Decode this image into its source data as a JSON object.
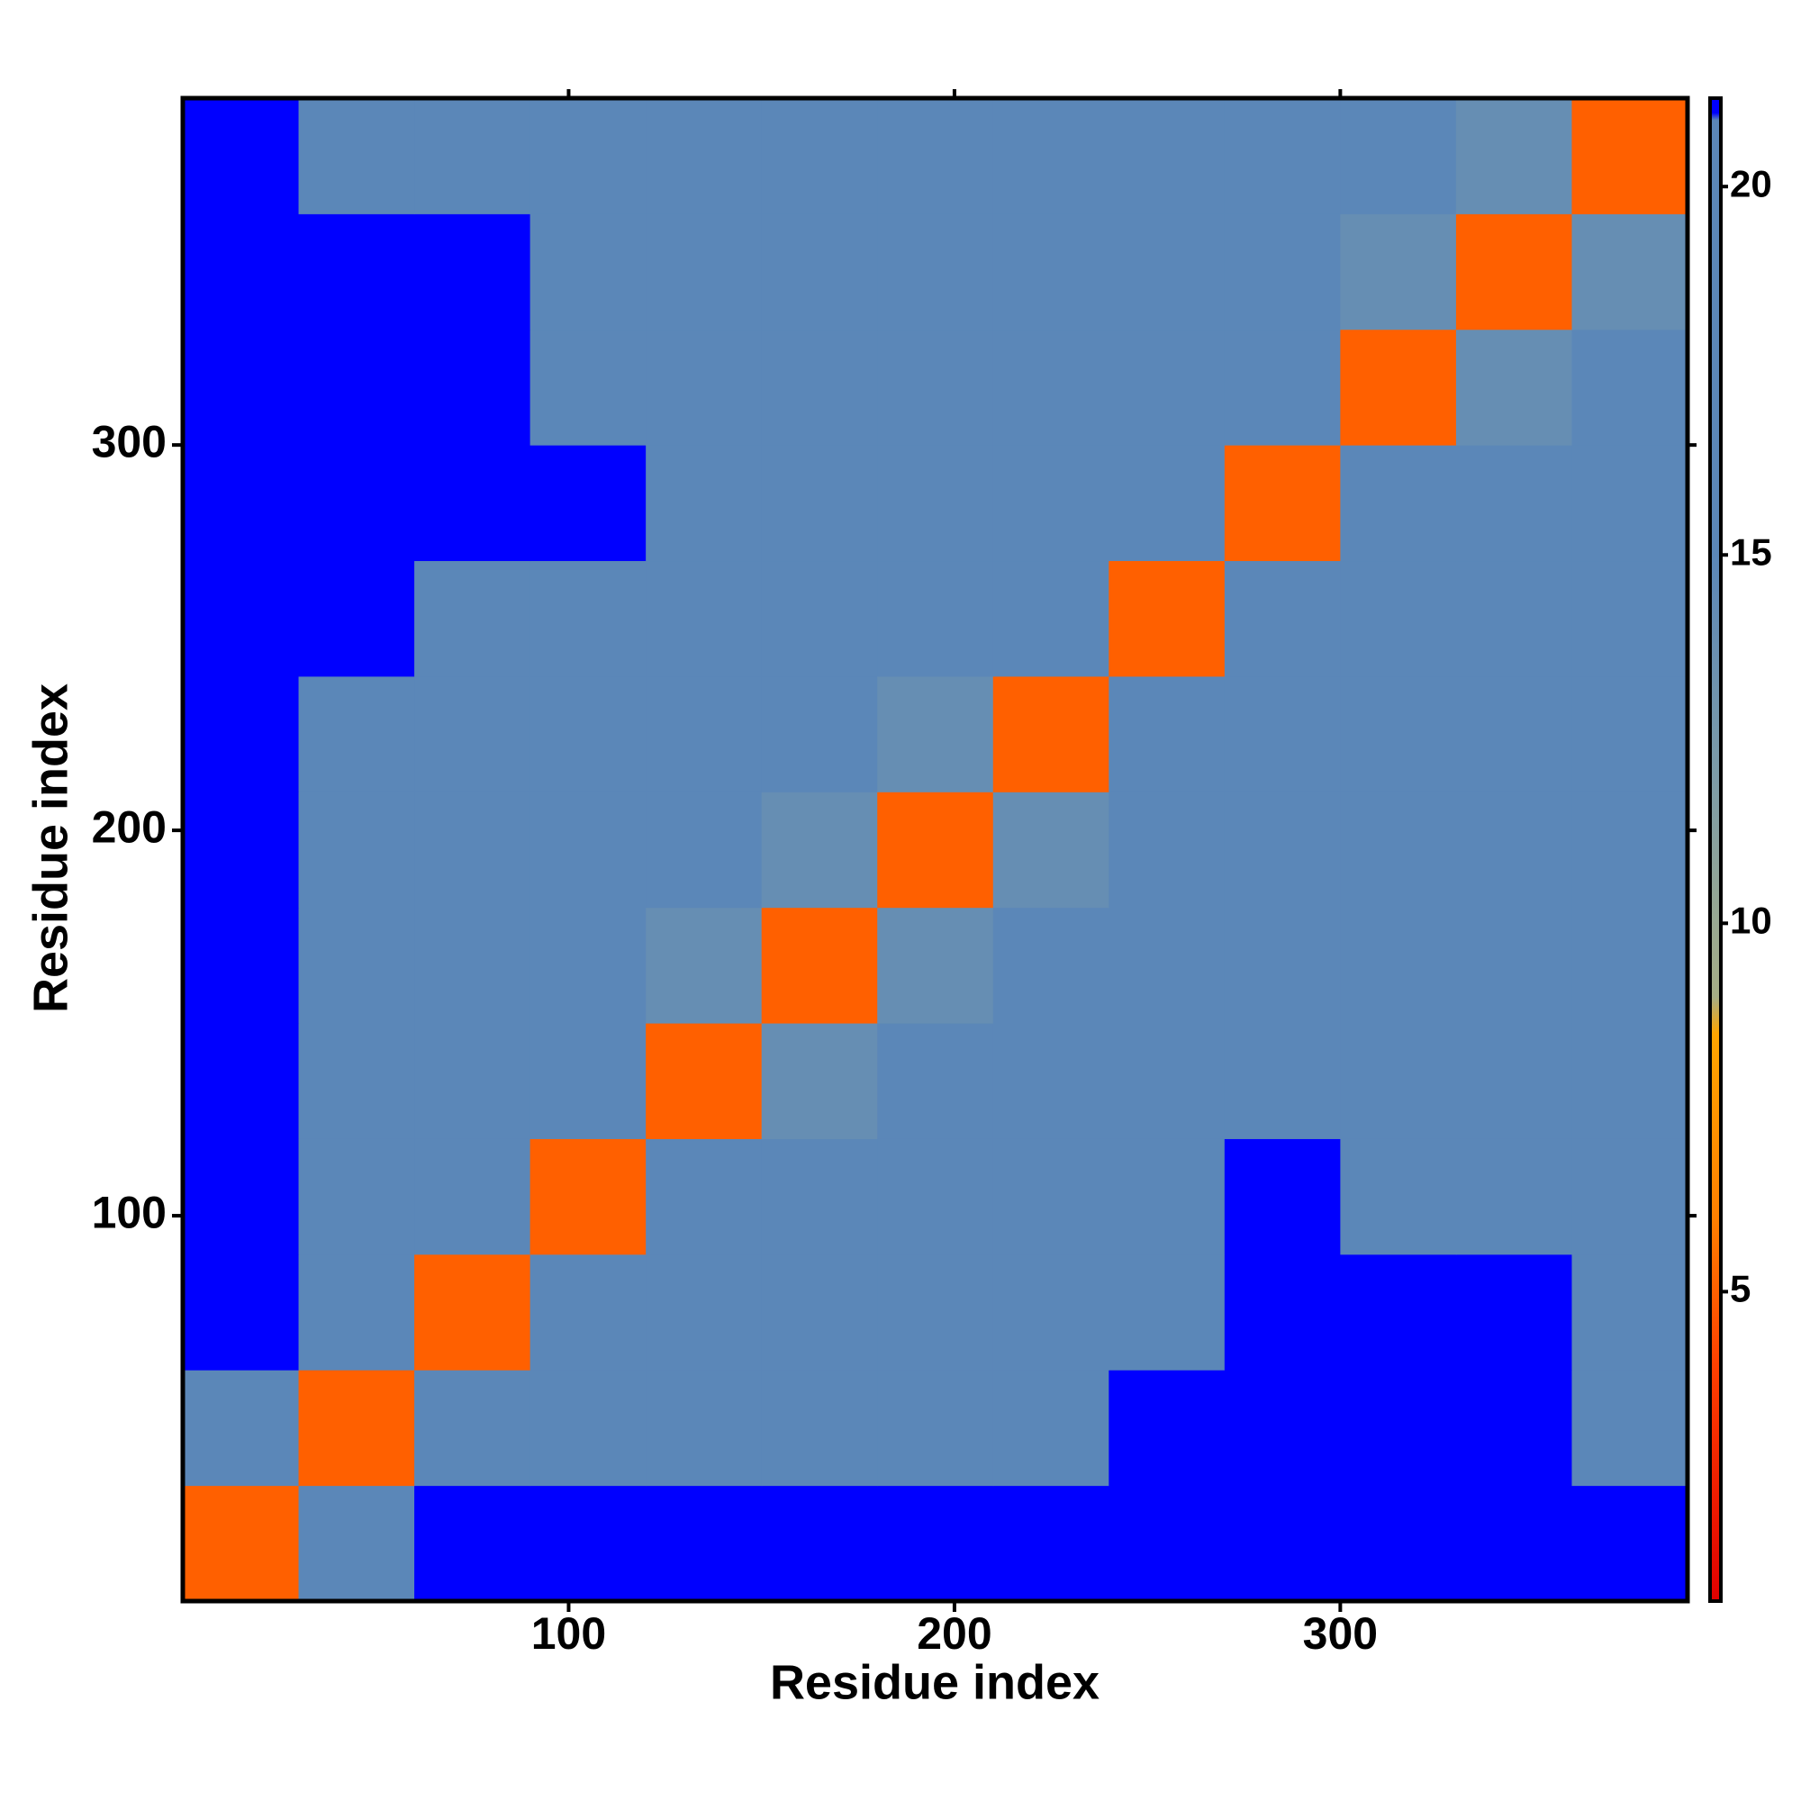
{
  "chart_data": {
    "type": "heatmap",
    "x_label": "Residue index",
    "y_label": "Residue index",
    "x_bins": [
      0,
      30,
      60,
      90,
      120,
      150,
      180,
      210,
      240,
      270,
      300,
      330,
      360,
      390
    ],
    "y_bins": [
      0,
      30,
      60,
      90,
      120,
      150,
      180,
      210,
      240,
      270,
      300,
      330,
      360,
      390
    ],
    "xlim": [
      0,
      390
    ],
    "ylim": [
      0,
      390
    ],
    "xticks": [
      100,
      200,
      300
    ],
    "yticks": [
      100,
      200,
      300
    ],
    "values": [
      [
        5,
        19,
        21,
        21,
        21,
        21,
        21,
        21,
        21,
        21,
        21,
        21,
        21
      ],
      [
        19,
        5,
        18,
        20,
        20,
        20,
        20,
        20,
        21,
        21,
        21,
        21,
        19
      ],
      [
        21,
        18,
        5,
        17,
        18,
        17,
        18,
        18,
        18,
        21,
        21,
        21,
        17
      ],
      [
        21,
        20,
        17,
        5,
        15,
        16,
        16,
        17,
        17,
        21,
        20,
        20,
        20
      ],
      [
        21,
        20,
        18,
        15,
        5,
        14,
        15,
        16,
        16,
        20,
        20,
        20,
        20
      ],
      [
        21,
        20,
        17,
        16,
        14,
        5,
        14,
        15,
        16,
        19,
        19,
        20,
        20
      ],
      [
        21,
        20,
        18,
        16,
        15,
        14,
        5,
        14,
        17,
        19,
        19,
        20,
        20
      ],
      [
        21,
        20,
        18,
        17,
        16,
        15,
        14,
        5,
        16,
        18,
        19,
        20,
        20
      ],
      [
        21,
        21,
        18,
        17,
        16,
        16,
        17,
        16,
        5,
        16,
        20,
        20,
        20
      ],
      [
        21,
        21,
        21,
        21,
        20,
        19,
        19,
        18,
        16,
        5,
        16,
        18,
        19
      ],
      [
        21,
        21,
        21,
        20,
        20,
        19,
        19,
        19,
        20,
        16,
        5,
        14,
        15
      ],
      [
        21,
        21,
        21,
        20,
        20,
        20,
        20,
        20,
        20,
        18,
        14,
        5,
        14
      ],
      [
        21,
        19,
        17,
        20,
        20,
        20,
        20,
        20,
        20,
        19,
        15,
        14,
        5
      ]
    ],
    "colorbar": {
      "lim": [
        0.8,
        21.2
      ],
      "ticks": [
        5,
        10,
        15,
        20
      ],
      "stops": [
        {
          "value": 0.8,
          "color": "#e00000"
        },
        {
          "value": 4,
          "color": "#ff4000"
        },
        {
          "value": 6,
          "color": "#ff8000"
        },
        {
          "value": 8.5,
          "color": "#ffa500"
        },
        {
          "value": 9,
          "color": "#a6ae86"
        },
        {
          "value": 12,
          "color": "#7d9ca8"
        },
        {
          "value": 15,
          "color": "#5b87b8"
        },
        {
          "value": 20.9,
          "color": "#5b87b8"
        },
        {
          "value": 21,
          "color": "#0000ff"
        },
        {
          "value": 21.2,
          "color": "#0000ff"
        }
      ]
    }
  }
}
